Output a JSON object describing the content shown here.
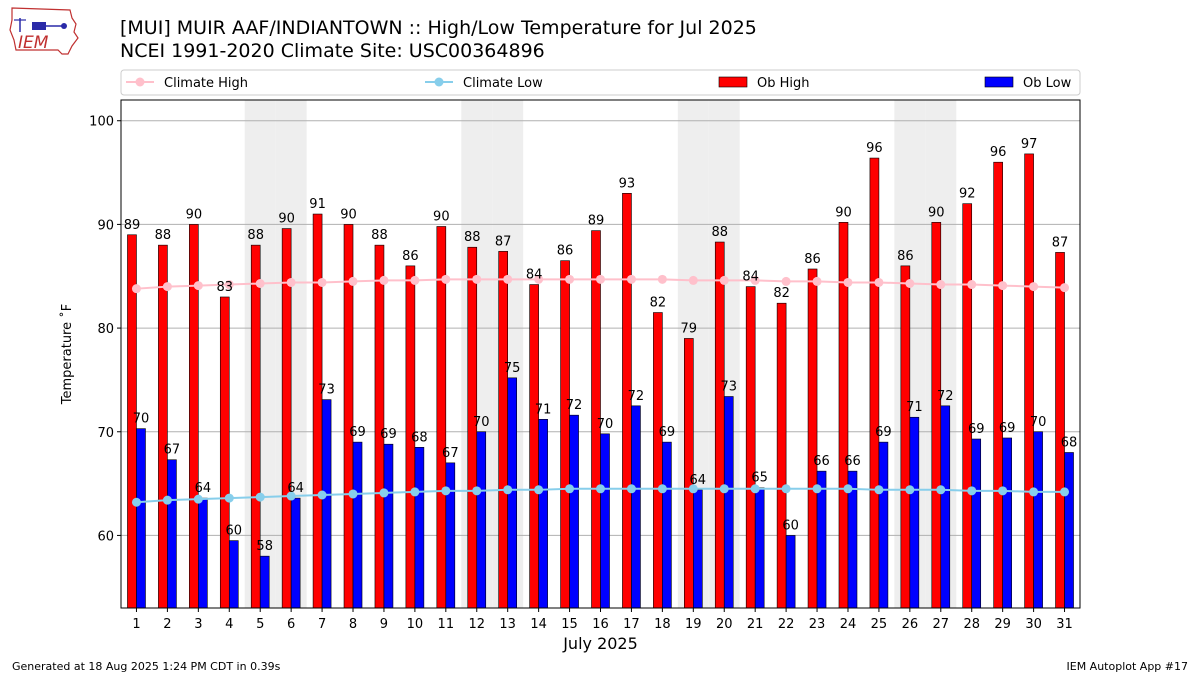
{
  "header": {
    "title_line1": "[MUI] MUIR AAF/INDIANTOWN :: High/Low Temperature for Jul 2025",
    "title_line2": "NCEI 1991-2020 Climate Site: USC00364896",
    "logo_text": "IEM"
  },
  "footer": {
    "left": "Generated at 18 Aug 2025 1:24 PM CDT in 0.39s",
    "right": "IEM Autoplot App #17"
  },
  "chart_data": {
    "type": "bar",
    "xlabel": "July 2025",
    "ylabel": "Temperature ˚F",
    "ylim": [
      53,
      102
    ],
    "yticks": [
      60,
      70,
      80,
      90,
      100
    ],
    "grid": true,
    "legend_position": "top",
    "categories": [
      "1",
      "2",
      "3",
      "4",
      "5",
      "6",
      "7",
      "8",
      "9",
      "10",
      "11",
      "12",
      "13",
      "14",
      "15",
      "16",
      "17",
      "18",
      "19",
      "20",
      "21",
      "22",
      "23",
      "24",
      "25",
      "26",
      "27",
      "28",
      "29",
      "30",
      "31"
    ],
    "weekend_days": [
      5,
      6,
      12,
      13,
      19,
      20,
      26,
      27
    ],
    "series": [
      {
        "name": "Ob High",
        "kind": "bar",
        "color": "#ff0000",
        "values": [
          89,
          88,
          90,
          83,
          88,
          90,
          91,
          90,
          88,
          86,
          90,
          88,
          87,
          84,
          86,
          89,
          93,
          82,
          79,
          88,
          84,
          82,
          86,
          90,
          96,
          86,
          90,
          92,
          96,
          97,
          87
        ],
        "plotted": [
          89,
          88,
          90,
          83,
          88,
          89.6,
          91,
          90,
          88,
          86,
          89.8,
          87.8,
          87.4,
          84.2,
          86.5,
          89.4,
          93,
          81.5,
          79,
          88.3,
          84,
          82.4,
          85.7,
          90.2,
          96.4,
          86,
          90.2,
          92,
          96,
          96.8,
          87.3
        ]
      },
      {
        "name": "Ob Low",
        "kind": "bar",
        "color": "#0000ff",
        "values": [
          70,
          67,
          64,
          60,
          58,
          64,
          73,
          69,
          69,
          68,
          67,
          70,
          75,
          71,
          72,
          70,
          72,
          69,
          64,
          73,
          65,
          60,
          66,
          66,
          69,
          71,
          72,
          69,
          69,
          70,
          68
        ],
        "plotted": [
          70.3,
          67.3,
          63.6,
          59.5,
          58,
          63.6,
          73.1,
          69,
          68.8,
          68.5,
          67,
          70,
          75.2,
          71.2,
          71.6,
          69.8,
          72.5,
          69,
          64.4,
          73.4,
          64.6,
          60,
          66.2,
          66.2,
          69,
          71.4,
          72.5,
          69.3,
          69.4,
          70,
          68
        ]
      },
      {
        "name": "Climate High",
        "kind": "line",
        "color": "#ffc0cb",
        "values": [
          83.8,
          84.0,
          84.1,
          84.2,
          84.3,
          84.4,
          84.4,
          84.5,
          84.6,
          84.6,
          84.7,
          84.7,
          84.7,
          84.7,
          84.7,
          84.7,
          84.7,
          84.7,
          84.6,
          84.6,
          84.6,
          84.5,
          84.5,
          84.4,
          84.4,
          84.3,
          84.2,
          84.2,
          84.1,
          84.0,
          83.9
        ]
      },
      {
        "name": "Climate Low",
        "kind": "line",
        "color": "#87ceeb",
        "values": [
          63.2,
          63.4,
          63.5,
          63.6,
          63.7,
          63.8,
          63.9,
          64.0,
          64.1,
          64.2,
          64.3,
          64.3,
          64.4,
          64.4,
          64.5,
          64.5,
          64.5,
          64.5,
          64.5,
          64.5,
          64.5,
          64.5,
          64.5,
          64.5,
          64.4,
          64.4,
          64.4,
          64.3,
          64.3,
          64.2,
          64.2
        ]
      }
    ]
  }
}
